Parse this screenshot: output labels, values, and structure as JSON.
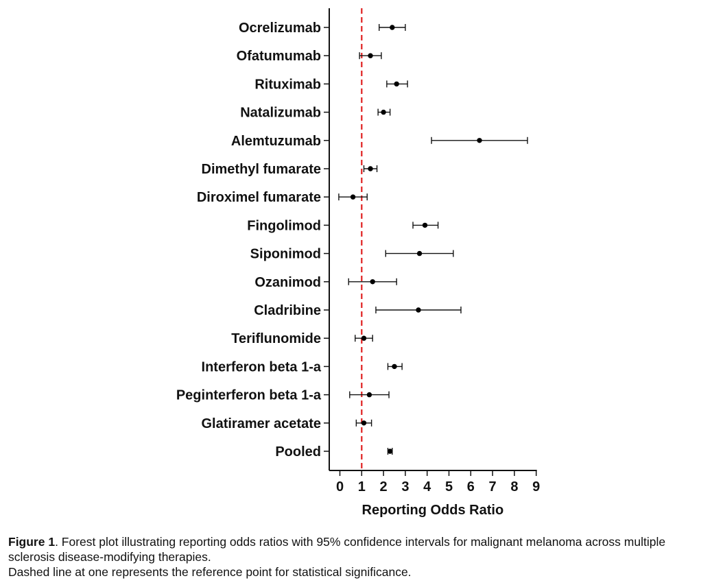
{
  "chart_data": {
    "type": "forest",
    "xlabel": "Reporting Odds Ratio",
    "xlim": [
      -0.5,
      9
    ],
    "xticks": [
      "0",
      "1",
      "2",
      "3",
      "4",
      "5",
      "6",
      "7",
      "8",
      "9"
    ],
    "reference_line": 1,
    "reference_color": "#e02020",
    "point_color": "#000000",
    "rows": [
      {
        "label": "Ocrelizumab",
        "or": 2.4,
        "lo": 1.8,
        "hi": 3.0
      },
      {
        "label": "Ofatumumab",
        "or": 1.4,
        "lo": 0.9,
        "hi": 1.9
      },
      {
        "label": "Rituximab",
        "or": 2.6,
        "lo": 2.15,
        "hi": 3.1
      },
      {
        "label": "Natalizumab",
        "or": 2.0,
        "lo": 1.75,
        "hi": 2.3
      },
      {
        "label": "Alemtuzumab",
        "or": 6.4,
        "lo": 4.2,
        "hi": 8.6
      },
      {
        "label": "Dimethyl fumarate",
        "or": 1.4,
        "lo": 1.1,
        "hi": 1.7
      },
      {
        "label": "Diroximel fumarate",
        "or": 0.6,
        "lo": -0.05,
        "hi": 1.25
      },
      {
        "label": "Fingolimod",
        "or": 3.9,
        "lo": 3.35,
        "hi": 4.5
      },
      {
        "label": "Siponimod",
        "or": 3.65,
        "lo": 2.1,
        "hi": 5.2
      },
      {
        "label": "Ozanimod",
        "or": 1.5,
        "lo": 0.4,
        "hi": 2.6
      },
      {
        "label": "Cladribine",
        "or": 3.6,
        "lo": 1.65,
        "hi": 5.55
      },
      {
        "label": "Teriflunomide",
        "or": 1.1,
        "lo": 0.7,
        "hi": 1.5
      },
      {
        "label": "Interferon beta 1-a",
        "or": 2.5,
        "lo": 2.2,
        "hi": 2.85
      },
      {
        "label": "Peginterferon beta 1-a",
        "or": 1.35,
        "lo": 0.45,
        "hi": 2.25
      },
      {
        "label": "Glatiramer acetate",
        "or": 1.1,
        "lo": 0.75,
        "hi": 1.45
      },
      {
        "label": "Pooled",
        "or": 2.3,
        "lo": 2.2,
        "hi": 2.4
      }
    ]
  },
  "caption": {
    "figure_label": "Figure 1",
    "line1_text": ". Forest plot illustrating reporting odds ratios with 95% confidence intervals for malignant melanoma across multiple sclerosis disease-modifying therapies.",
    "line2_text": "Dashed line at one represents the reference point for statistical significance."
  }
}
